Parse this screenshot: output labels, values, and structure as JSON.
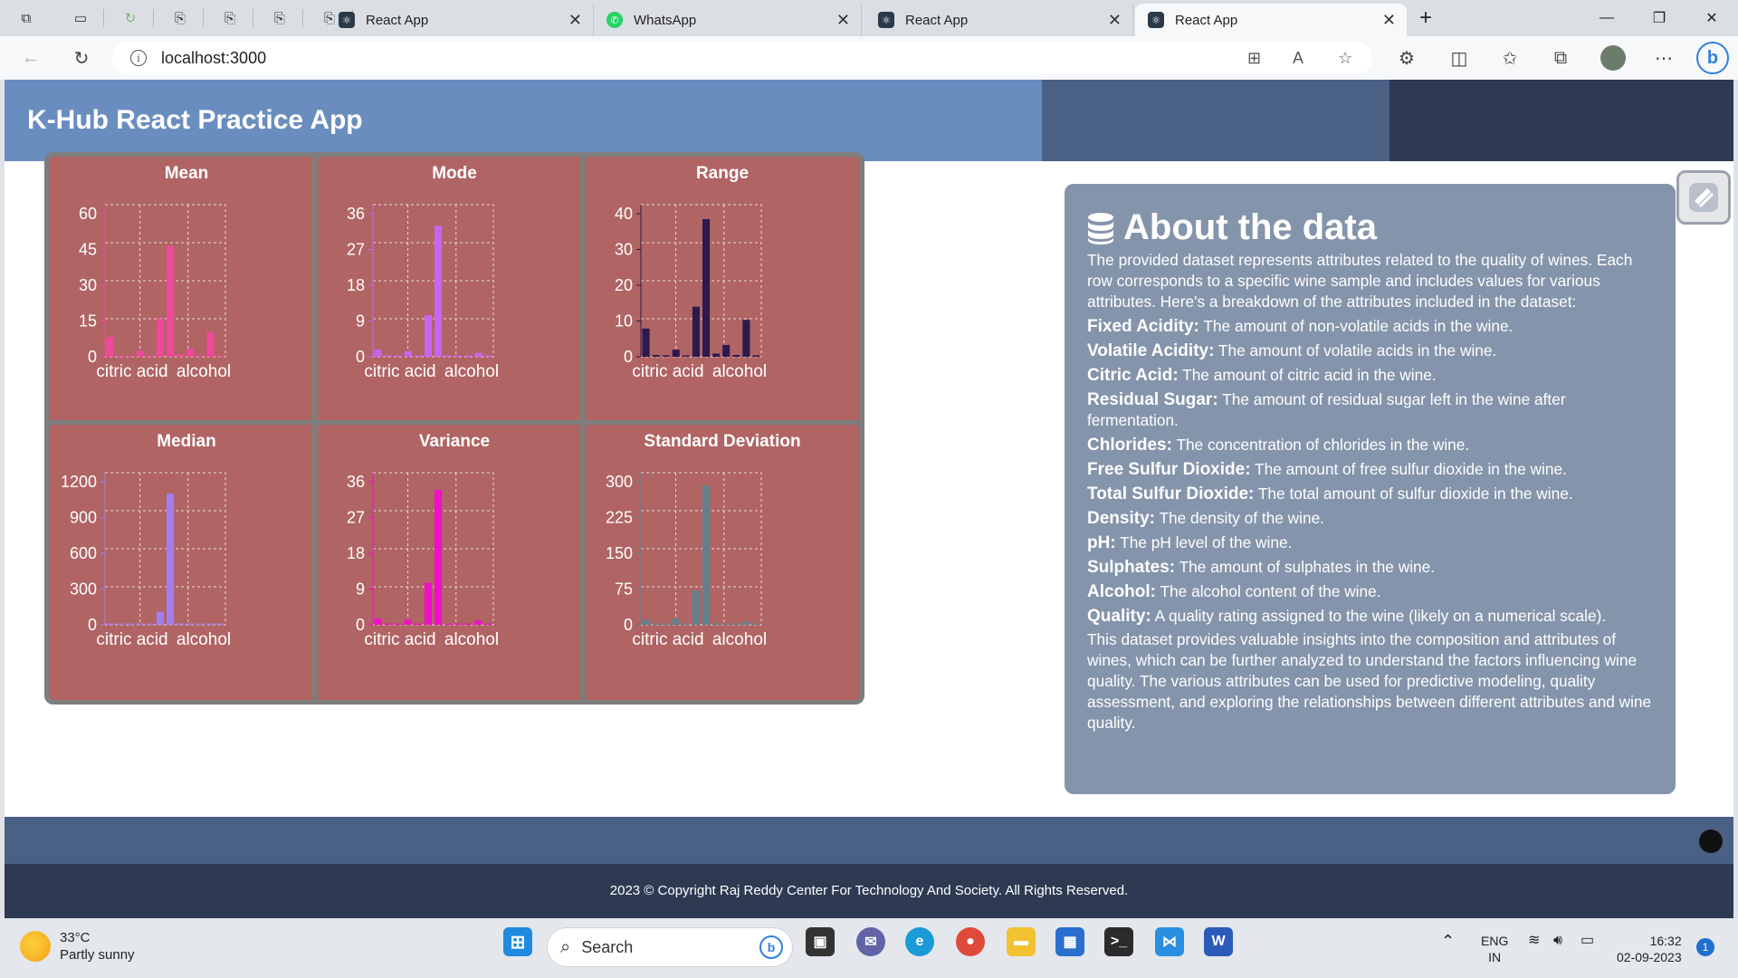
{
  "browser": {
    "tabs": [
      {
        "title": "React App",
        "favicon": "react-icon"
      },
      {
        "title": "WhatsApp",
        "favicon": "whatsapp-icon"
      },
      {
        "title": "React App",
        "favicon": "react-icon"
      },
      {
        "title": "React App",
        "favicon": "react-icon"
      }
    ],
    "url": "localhost:3000",
    "tab_close_glyph": "✕",
    "new_tab_glyph": "+"
  },
  "app": {
    "title": "K-Hub React Practice App",
    "colors": {
      "header_light": "#6a8dbf",
      "header_mid": "#4a6085",
      "header_dark": "#2d3a52",
      "card_bg": "#b06464",
      "about_bg": "#8494ab"
    }
  },
  "chart_data": [
    {
      "type": "bar",
      "title": "Mean",
      "color": "#f0489c",
      "yticks": [
        "60",
        "45",
        "30",
        "15",
        "0"
      ],
      "ylim": [
        0,
        60
      ],
      "xlabels": [
        "citric acid",
        "alcohol"
      ],
      "values": [
        8.3,
        0.5,
        0.3,
        2.5,
        0.1,
        15.9,
        46.5,
        1.0,
        3.3,
        0.7,
        10.4,
        0.5
      ]
    },
    {
      "type": "bar",
      "title": "Mode",
      "color": "#c964f0",
      "yticks": [
        "36",
        "27",
        "18",
        "9",
        "0"
      ],
      "ylim": [
        0,
        36
      ],
      "xlabels": [
        "citric acid",
        "alcohol"
      ],
      "values": [
        1.8,
        0.3,
        0.2,
        1.4,
        0.1,
        10.5,
        33.0,
        0.1,
        0.1,
        0.2,
        1.0,
        0.2
      ]
    },
    {
      "type": "bar",
      "title": "Range",
      "color": "#2c1a4e",
      "yticks": [
        "40",
        "30",
        "20",
        "10",
        "0"
      ],
      "ylim": [
        0,
        40
      ],
      "xlabels": [
        "citric acid",
        "alcohol"
      ],
      "values": [
        7.9,
        0.5,
        0.1,
        2.0,
        0.1,
        14.0,
        38.5,
        0.9,
        3.3,
        0.5,
        10.3,
        0.4
      ]
    },
    {
      "type": "bar",
      "title": "Median",
      "color": "#a37ef0",
      "yticks": [
        "1200",
        "900",
        "600",
        "300",
        "0"
      ],
      "ylim": [
        0,
        1200
      ],
      "xlabels": [
        "citric acid",
        "alcohol"
      ],
      "values": [
        7.9,
        0.5,
        0.3,
        2.2,
        0.1,
        110,
        1100,
        1.0,
        3.3,
        0.6,
        10.2,
        0.5
      ]
    },
    {
      "type": "bar",
      "title": "Variance",
      "color": "#f010c8",
      "yticks": [
        "36",
        "27",
        "18",
        "9",
        "0"
      ],
      "ylim": [
        0,
        36
      ],
      "xlabels": [
        "citric acid",
        "alcohol"
      ],
      "values": [
        1.6,
        0.1,
        0.1,
        1.3,
        0.1,
        10.6,
        34.0,
        0.1,
        0.1,
        0.1,
        1.1,
        0.1
      ]
    },
    {
      "type": "bar",
      "title": "Standard Deviation",
      "color": "#63818c",
      "yticks": [
        "300",
        "225",
        "150",
        "75",
        "0"
      ],
      "ylim": [
        0,
        300
      ],
      "xlabels": [
        "citric acid",
        "alcohol"
      ],
      "values": [
        10.7,
        0.2,
        0.2,
        13.4,
        0.3,
        72.0,
        292.0,
        0.3,
        0.2,
        0.2,
        6.4,
        0.3
      ]
    }
  ],
  "about": {
    "title": "About the data",
    "intro": "The provided dataset represents attributes related to the quality of wines. Each row corresponds to a specific wine sample and includes values for various attributes. Here's a breakdown of the attributes included in the dataset:",
    "attributes": [
      {
        "name": "Fixed Acidity:",
        "desc": "The amount of non-volatile acids in the wine."
      },
      {
        "name": "Volatile Acidity:",
        "desc": "The amount of volatile acids in the wine."
      },
      {
        "name": "Citric Acid:",
        "desc": "The amount of citric acid in the wine."
      },
      {
        "name": "Residual Sugar:",
        "desc": "The amount of residual sugar left in the wine after fermentation."
      },
      {
        "name": "Chlorides:",
        "desc": "The concentration of chlorides in the wine."
      },
      {
        "name": "Free Sulfur Dioxide:",
        "desc": "The amount of free sulfur dioxide in the wine."
      },
      {
        "name": "Total Sulfur Dioxide:",
        "desc": "The total amount of sulfur dioxide in the wine."
      },
      {
        "name": "Density:",
        "desc": "The density of the wine."
      },
      {
        "name": "pH:",
        "desc": "The pH level of the wine."
      },
      {
        "name": "Sulphates:",
        "desc": "The amount of sulphates in the wine."
      },
      {
        "name": "Alcohol:",
        "desc": "The alcohol content of the wine."
      },
      {
        "name": "Quality:",
        "desc": "A quality rating assigned to the wine (likely on a numerical scale)."
      }
    ],
    "outro": "This dataset provides valuable insights into the composition and attributes of wines, which can be further analyzed to understand the factors influencing wine quality. The various attributes can be used for predictive modeling, quality assessment, and exploring the relationships between different attributes and wine quality."
  },
  "footer": {
    "copyright": "2023 © Copyright Raj Reddy Center For Technology And Society. All Rights Reserved."
  },
  "taskbar": {
    "weather_temp": "33°C",
    "weather_desc": "Partly sunny",
    "search_label": "Search",
    "lang_top": "ENG",
    "lang_bottom": "IN",
    "time": "16:32",
    "date": "02-09-2023",
    "notification_count": "1"
  }
}
